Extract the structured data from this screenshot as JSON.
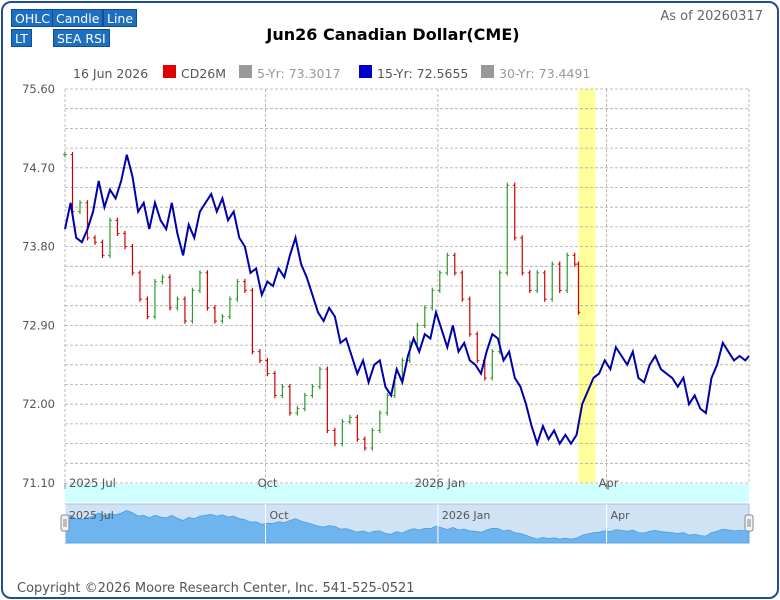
{
  "toolbar": {
    "ohlc": "OHLC",
    "candle": "Candle",
    "line": "Line",
    "lt": "LT",
    "sea_rsi": "SEA RSI"
  },
  "header": {
    "title": "Jun26 Canadian Dollar(CME)",
    "as_of": "As of 20260317"
  },
  "legend": {
    "date": "16 Jun 2026",
    "items": [
      {
        "label": "CD26M",
        "color": "#e00000"
      },
      {
        "label": "5-Yr: 73.3017",
        "color": "#999999"
      },
      {
        "label": "15-Yr: 72.5655",
        "color": "#0000cc"
      },
      {
        "label": "30-Yr: 73.4491",
        "color": "#999999"
      }
    ]
  },
  "footer": {
    "copyright": "Copyright ©2026 Moore Research Center, Inc. 541-525-0521"
  },
  "colors": {
    "up": "#2e9a2e",
    "down": "#d00000",
    "seasonal": "#0000aa",
    "highlight": "#ffff99",
    "navigator_fill": "#6eb4ee",
    "navigator_bg": "#cfe3f5"
  },
  "chart_data": {
    "type": "line",
    "title": "Jun26 Canadian Dollar(CME)",
    "xlabel": "",
    "ylabel": "",
    "ylim": [
      71.1,
      75.6
    ],
    "xlim": [
      "2025-06-16",
      "2026-06-16"
    ],
    "y_ticks": [
      "75.60",
      "74.70",
      "73.80",
      "72.90",
      "72.00",
      "71.10"
    ],
    "x_ticks": [
      {
        "date": "2025-06-16",
        "label": "2025 Jul"
      },
      {
        "date": "2025-10-01",
        "label": "Oct"
      },
      {
        "date": "2026-01-01",
        "label": "2026 Jan"
      },
      {
        "date": "2026-04-01",
        "label": "Apr"
      }
    ],
    "navigator_labels": [
      "2025 Jul",
      "Oct",
      "2026 Jan",
      "Apr"
    ],
    "highlight_range": [
      "2026-03-17",
      "2026-03-26"
    ],
    "grid": true,
    "legend_position": "top",
    "series": [
      {
        "name": "15-Yr: 72.5655",
        "color": "#0000aa",
        "points": [
          [
            "2025-06-16",
            74.0
          ],
          [
            "2025-06-19",
            74.3
          ],
          [
            "2025-06-22",
            73.9
          ],
          [
            "2025-06-25",
            73.85
          ],
          [
            "2025-06-28",
            74.0
          ],
          [
            "2025-07-01",
            74.2
          ],
          [
            "2025-07-04",
            74.55
          ],
          [
            "2025-07-07",
            74.25
          ],
          [
            "2025-07-10",
            74.45
          ],
          [
            "2025-07-13",
            74.35
          ],
          [
            "2025-07-16",
            74.55
          ],
          [
            "2025-07-19",
            74.85
          ],
          [
            "2025-07-22",
            74.6
          ],
          [
            "2025-07-25",
            74.2
          ],
          [
            "2025-07-28",
            74.3
          ],
          [
            "2025-07-31",
            74.0
          ],
          [
            "2025-08-03",
            74.3
          ],
          [
            "2025-08-06",
            74.1
          ],
          [
            "2025-08-09",
            74.0
          ],
          [
            "2025-08-12",
            74.3
          ],
          [
            "2025-08-15",
            73.95
          ],
          [
            "2025-08-18",
            73.7
          ],
          [
            "2025-08-21",
            74.05
          ],
          [
            "2025-08-24",
            73.9
          ],
          [
            "2025-08-27",
            74.2
          ],
          [
            "2025-08-30",
            74.3
          ],
          [
            "2025-09-02",
            74.4
          ],
          [
            "2025-09-05",
            74.2
          ],
          [
            "2025-09-08",
            74.35
          ],
          [
            "2025-09-11",
            74.1
          ],
          [
            "2025-09-14",
            74.2
          ],
          [
            "2025-09-17",
            73.9
          ],
          [
            "2025-09-20",
            73.8
          ],
          [
            "2025-09-23",
            73.5
          ],
          [
            "2025-09-26",
            73.55
          ],
          [
            "2025-09-29",
            73.25
          ],
          [
            "2025-10-02",
            73.4
          ],
          [
            "2025-10-05",
            73.35
          ],
          [
            "2025-10-08",
            73.55
          ],
          [
            "2025-10-11",
            73.45
          ],
          [
            "2025-10-14",
            73.7
          ],
          [
            "2025-10-17",
            73.9
          ],
          [
            "2025-10-20",
            73.6
          ],
          [
            "2025-10-23",
            73.45
          ],
          [
            "2025-10-26",
            73.25
          ],
          [
            "2025-10-29",
            73.05
          ],
          [
            "2025-11-01",
            72.95
          ],
          [
            "2025-11-04",
            73.1
          ],
          [
            "2025-11-07",
            73.0
          ],
          [
            "2025-11-10",
            72.7
          ],
          [
            "2025-11-13",
            72.75
          ],
          [
            "2025-11-16",
            72.55
          ],
          [
            "2025-11-19",
            72.35
          ],
          [
            "2025-11-22",
            72.5
          ],
          [
            "2025-11-25",
            72.25
          ],
          [
            "2025-11-28",
            72.45
          ],
          [
            "2025-12-01",
            72.5
          ],
          [
            "2025-12-04",
            72.2
          ],
          [
            "2025-12-07",
            72.1
          ],
          [
            "2025-12-10",
            72.4
          ],
          [
            "2025-12-13",
            72.25
          ],
          [
            "2025-12-16",
            72.55
          ],
          [
            "2025-12-19",
            72.75
          ],
          [
            "2025-12-22",
            72.6
          ],
          [
            "2025-12-25",
            72.8
          ],
          [
            "2025-12-28",
            72.75
          ],
          [
            "2025-12-31",
            73.05
          ],
          [
            "2026-01-03",
            72.85
          ],
          [
            "2026-01-06",
            72.65
          ],
          [
            "2026-01-09",
            72.9
          ],
          [
            "2026-01-12",
            72.6
          ],
          [
            "2026-01-15",
            72.7
          ],
          [
            "2026-01-18",
            72.5
          ],
          [
            "2026-01-21",
            72.45
          ],
          [
            "2026-01-24",
            72.35
          ],
          [
            "2026-01-27",
            72.6
          ],
          [
            "2026-01-30",
            72.8
          ],
          [
            "2026-02-02",
            72.75
          ],
          [
            "2026-02-05",
            72.5
          ],
          [
            "2026-02-08",
            72.6
          ],
          [
            "2026-02-11",
            72.3
          ],
          [
            "2026-02-14",
            72.2
          ],
          [
            "2026-02-17",
            72.0
          ],
          [
            "2026-02-20",
            71.75
          ],
          [
            "2026-02-23",
            71.55
          ],
          [
            "2026-02-26",
            71.75
          ],
          [
            "2026-03-01",
            71.6
          ],
          [
            "2026-03-04",
            71.7
          ],
          [
            "2026-03-07",
            71.55
          ],
          [
            "2026-03-10",
            71.65
          ],
          [
            "2026-03-13",
            71.55
          ],
          [
            "2026-03-16",
            71.65
          ],
          [
            "2026-03-19",
            72.0
          ],
          [
            "2026-03-22",
            72.15
          ],
          [
            "2026-03-25",
            72.3
          ],
          [
            "2026-03-28",
            72.35
          ],
          [
            "2026-03-31",
            72.5
          ],
          [
            "2026-04-03",
            72.4
          ],
          [
            "2026-04-06",
            72.65
          ],
          [
            "2026-04-09",
            72.55
          ],
          [
            "2026-04-12",
            72.45
          ],
          [
            "2026-04-15",
            72.6
          ],
          [
            "2026-04-18",
            72.3
          ],
          [
            "2026-04-21",
            72.25
          ],
          [
            "2026-04-24",
            72.45
          ],
          [
            "2026-04-27",
            72.55
          ],
          [
            "2026-04-30",
            72.4
          ],
          [
            "2026-05-03",
            72.35
          ],
          [
            "2026-05-06",
            72.3
          ],
          [
            "2026-05-09",
            72.2
          ],
          [
            "2026-05-12",
            72.3
          ],
          [
            "2026-05-15",
            72.0
          ],
          [
            "2026-05-18",
            72.1
          ],
          [
            "2026-05-21",
            71.95
          ],
          [
            "2026-05-24",
            71.9
          ],
          [
            "2026-05-27",
            72.3
          ],
          [
            "2026-05-30",
            72.45
          ],
          [
            "2026-06-02",
            72.7
          ],
          [
            "2026-06-05",
            72.6
          ],
          [
            "2026-06-08",
            72.5
          ],
          [
            "2026-06-11",
            72.55
          ],
          [
            "2026-06-14",
            72.5
          ],
          [
            "2026-06-16",
            72.55
          ]
        ]
      },
      {
        "name": "CD26M",
        "type": "ohlc",
        "points": [
          [
            "2025-06-16",
            74.85
          ],
          [
            "2025-06-20",
            74.2
          ],
          [
            "2025-06-24",
            74.3
          ],
          [
            "2025-06-28",
            73.9
          ],
          [
            "2025-07-02",
            73.85
          ],
          [
            "2025-07-06",
            73.7
          ],
          [
            "2025-07-10",
            74.1
          ],
          [
            "2025-07-14",
            73.95
          ],
          [
            "2025-07-18",
            73.8
          ],
          [
            "2025-07-22",
            73.5
          ],
          [
            "2025-07-26",
            73.2
          ],
          [
            "2025-07-30",
            73.0
          ],
          [
            "2025-08-03",
            73.4
          ],
          [
            "2025-08-07",
            73.45
          ],
          [
            "2025-08-11",
            73.1
          ],
          [
            "2025-08-15",
            73.2
          ],
          [
            "2025-08-19",
            72.95
          ],
          [
            "2025-08-23",
            73.3
          ],
          [
            "2025-08-27",
            73.5
          ],
          [
            "2025-08-31",
            73.1
          ],
          [
            "2025-09-04",
            72.95
          ],
          [
            "2025-09-08",
            73.0
          ],
          [
            "2025-09-12",
            73.2
          ],
          [
            "2025-09-16",
            73.4
          ],
          [
            "2025-09-20",
            73.3
          ],
          [
            "2025-09-24",
            72.6
          ],
          [
            "2025-09-28",
            72.5
          ],
          [
            "2025-10-02",
            72.35
          ],
          [
            "2025-10-06",
            72.1
          ],
          [
            "2025-10-10",
            72.2
          ],
          [
            "2025-10-14",
            71.9
          ],
          [
            "2025-10-18",
            71.95
          ],
          [
            "2025-10-22",
            72.1
          ],
          [
            "2025-10-26",
            72.2
          ],
          [
            "2025-10-30",
            72.4
          ],
          [
            "2025-11-03",
            71.7
          ],
          [
            "2025-11-07",
            71.55
          ],
          [
            "2025-11-11",
            71.8
          ],
          [
            "2025-11-15",
            71.85
          ],
          [
            "2025-11-19",
            71.6
          ],
          [
            "2025-11-23",
            71.5
          ],
          [
            "2025-11-27",
            71.7
          ],
          [
            "2025-12-01",
            71.9
          ],
          [
            "2025-12-05",
            72.1
          ],
          [
            "2025-12-09",
            72.3
          ],
          [
            "2025-12-13",
            72.5
          ],
          [
            "2025-12-17",
            72.7
          ],
          [
            "2025-12-21",
            72.9
          ],
          [
            "2025-12-25",
            73.1
          ],
          [
            "2025-12-29",
            73.3
          ],
          [
            "2026-01-02",
            73.5
          ],
          [
            "2026-01-06",
            73.7
          ],
          [
            "2026-01-10",
            73.5
          ],
          [
            "2026-01-14",
            73.2
          ],
          [
            "2026-01-18",
            72.8
          ],
          [
            "2026-01-22",
            72.5
          ],
          [
            "2026-01-26",
            72.3
          ],
          [
            "2026-01-30",
            72.6
          ],
          [
            "2026-02-03",
            73.5
          ],
          [
            "2026-02-07",
            74.5
          ],
          [
            "2026-02-11",
            73.9
          ],
          [
            "2026-02-15",
            73.5
          ],
          [
            "2026-02-19",
            73.3
          ],
          [
            "2026-02-23",
            73.5
          ],
          [
            "2026-02-27",
            73.2
          ],
          [
            "2026-03-03",
            73.6
          ],
          [
            "2026-03-07",
            73.3
          ],
          [
            "2026-03-11",
            73.7
          ],
          [
            "2026-03-15",
            73.6
          ],
          [
            "2026-03-17",
            73.05
          ]
        ]
      }
    ]
  }
}
